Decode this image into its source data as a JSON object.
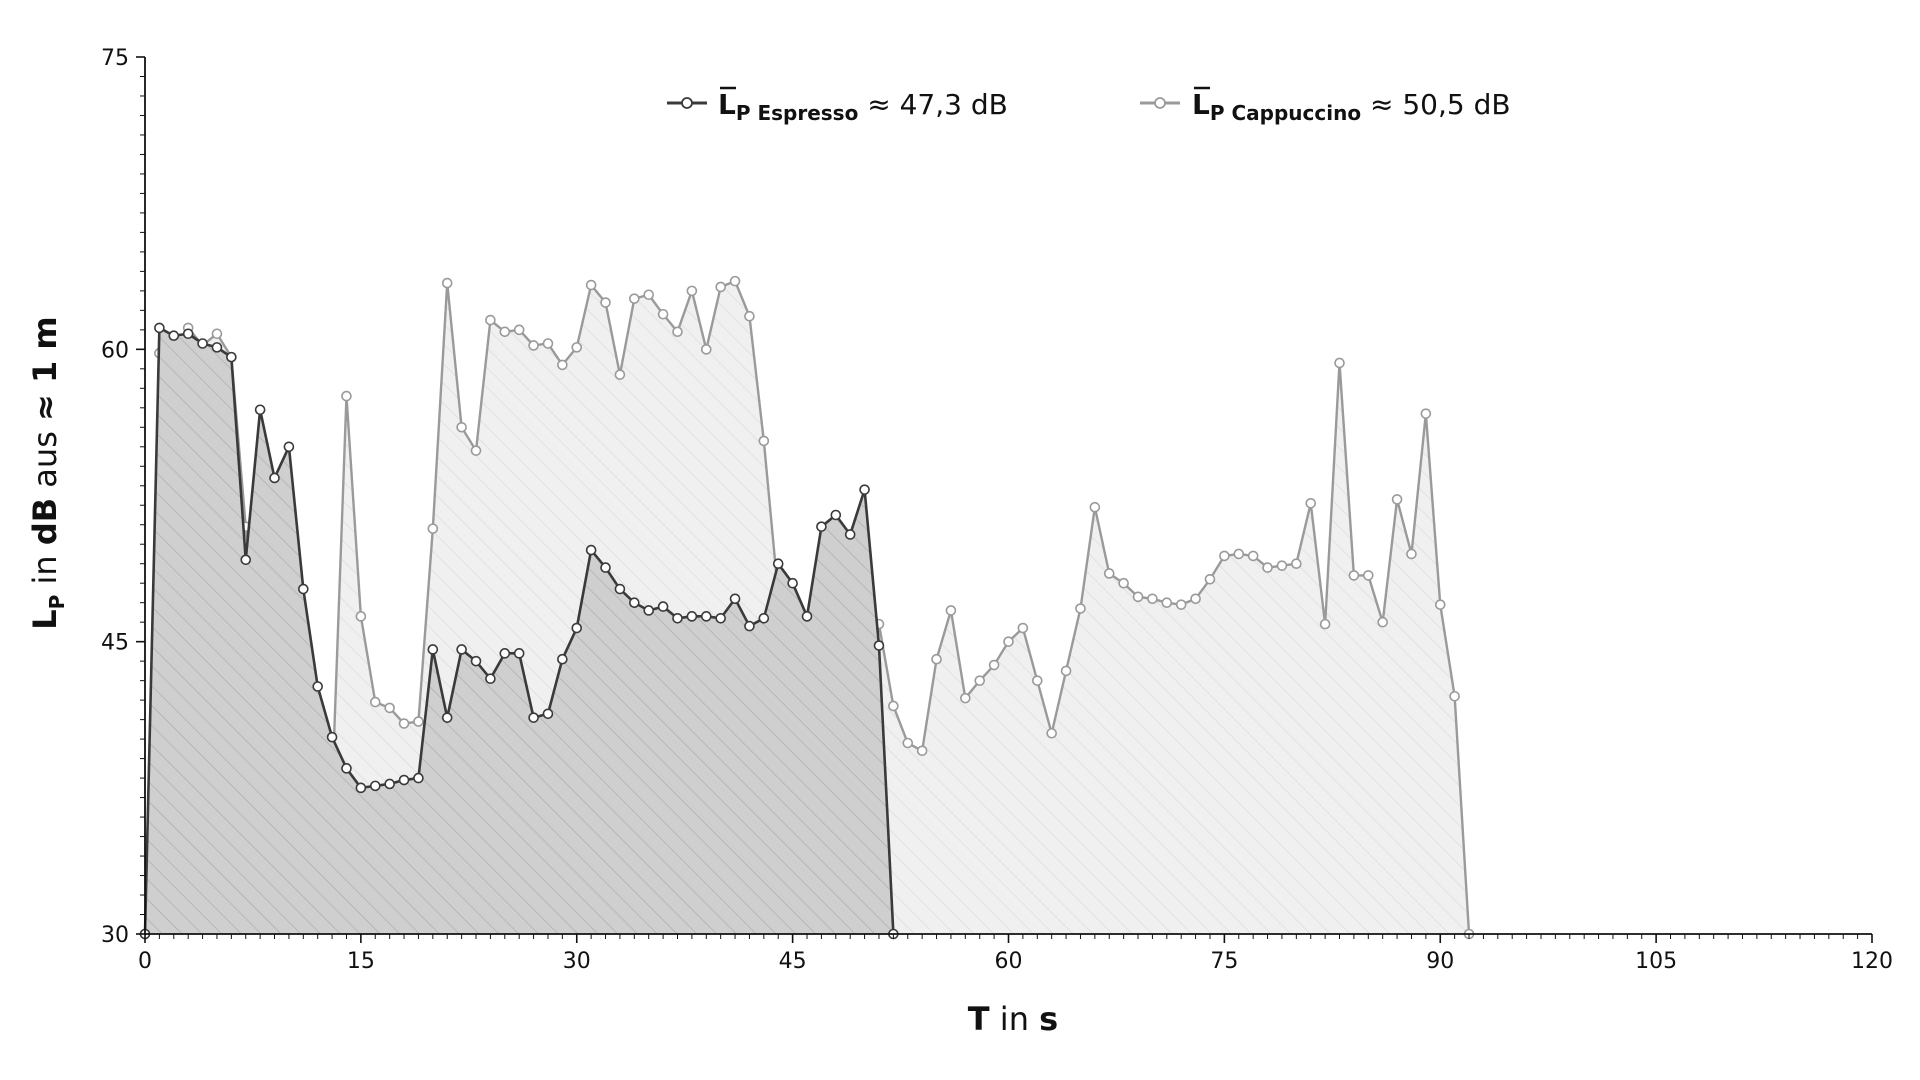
{
  "chart_data": {
    "type": "area",
    "xlabel_bold": "T",
    "xlabel_mid": " in ",
    "xlabel_unit": "s",
    "ylabel_main": "L",
    "ylabel_sub": "P",
    "ylabel_in": " in ",
    "ylabel_db": "dB",
    "ylabel_aus": " aus ",
    "ylabel_dist": "≈ 1 m",
    "xlim": [
      0,
      120
    ],
    "ylim": [
      30,
      75
    ],
    "xticks": [
      0,
      15,
      30,
      45,
      60,
      75,
      90,
      105,
      120
    ],
    "yticks": [
      30,
      45,
      60,
      75
    ],
    "grid": false,
    "legend_position": "top-center",
    "colors": {
      "espresso": "#3a3a3a",
      "cappuccino": "#9a9a9a",
      "espresso_fill": "#cfcfcf",
      "cappuccino_fill": "#efefef"
    },
    "series": [
      {
        "key": "cappuccino",
        "legend_main": "L",
        "legend_sub": "P Cappuccino",
        "legend_value": " ≈  50,5 dB",
        "x": [
          0,
          1,
          2,
          3,
          4,
          5,
          6,
          7,
          8,
          9,
          10,
          11,
          12,
          13,
          14,
          15,
          16,
          17,
          18,
          19,
          20,
          21,
          22,
          23,
          24,
          25,
          26,
          27,
          28,
          29,
          30,
          31,
          32,
          33,
          34,
          35,
          36,
          37,
          38,
          39,
          40,
          41,
          42,
          43,
          44,
          45,
          46,
          47,
          48,
          49,
          50,
          51,
          52,
          53,
          54,
          55,
          56,
          57,
          58,
          59,
          60,
          61,
          62,
          63,
          64,
          65,
          66,
          67,
          68,
          69,
          70,
          71,
          72,
          73,
          74,
          75,
          76,
          77,
          78,
          79,
          80,
          81,
          82,
          83,
          84,
          85,
          86,
          87,
          88,
          89,
          90,
          91,
          92
        ],
        "y": [
          30,
          59.8,
          59.5,
          61.1,
          60.2,
          60.8,
          59.6,
          50.9,
          44.1,
          40.5,
          38.7,
          37.5,
          37.3,
          37.3,
          57.6,
          46.3,
          41.9,
          41.6,
          40.8,
          40.9,
          50.8,
          63.4,
          56,
          54.8,
          61.5,
          60.9,
          61,
          60.2,
          60.3,
          59.2,
          60.1,
          63.3,
          62.4,
          58.7,
          62.6,
          62.8,
          61.8,
          60.9,
          63,
          60,
          63.2,
          63.5,
          61.7,
          55.3,
          47.4,
          45.6,
          44.8,
          44.3,
          41,
          44,
          47.6,
          45.9,
          41.7,
          39.8,
          39.4,
          44.1,
          46.6,
          42.1,
          43,
          43.8,
          45,
          45.7,
          43,
          40.3,
          43.5,
          46.7,
          51.9,
          48.5,
          48,
          47.3,
          47.2,
          47,
          46.9,
          47.2,
          48.2,
          49.4,
          49.5,
          49.4,
          48.8,
          48.9,
          49,
          52.1,
          45.9,
          59.3,
          48.4,
          48.4,
          46,
          52.3,
          49.5,
          56.7,
          46.9,
          42.2,
          30
        ]
      },
      {
        "key": "espresso",
        "legend_main": "L",
        "legend_sub": "P Espresso",
        "legend_value": " ≈  47,3 dB",
        "x": [
          0,
          1,
          2,
          3,
          4,
          5,
          6,
          7,
          8,
          9,
          10,
          11,
          12,
          13,
          14,
          15,
          16,
          17,
          18,
          19,
          20,
          21,
          22,
          23,
          24,
          25,
          26,
          27,
          28,
          29,
          30,
          31,
          32,
          33,
          34,
          35,
          36,
          37,
          38,
          39,
          40,
          41,
          42,
          43,
          44,
          45,
          46,
          47,
          48,
          49,
          50,
          51,
          52
        ],
        "y": [
          30,
          61.1,
          60.7,
          60.8,
          60.3,
          60.1,
          59.6,
          49.2,
          56.9,
          53.4,
          55,
          47.7,
          42.7,
          40.1,
          38.5,
          37.5,
          37.6,
          37.7,
          37.9,
          38,
          44.6,
          41.1,
          44.6,
          44,
          43.1,
          44.4,
          44.4,
          41.1,
          41.3,
          44.1,
          45.7,
          49.7,
          48.8,
          47.7,
          47,
          46.6,
          46.8,
          46.2,
          46.3,
          46.3,
          46.2,
          47.2,
          45.8,
          46.2,
          49,
          48,
          46.3,
          50.9,
          51.5,
          50.5,
          52.8,
          44.8,
          30
        ]
      }
    ]
  }
}
